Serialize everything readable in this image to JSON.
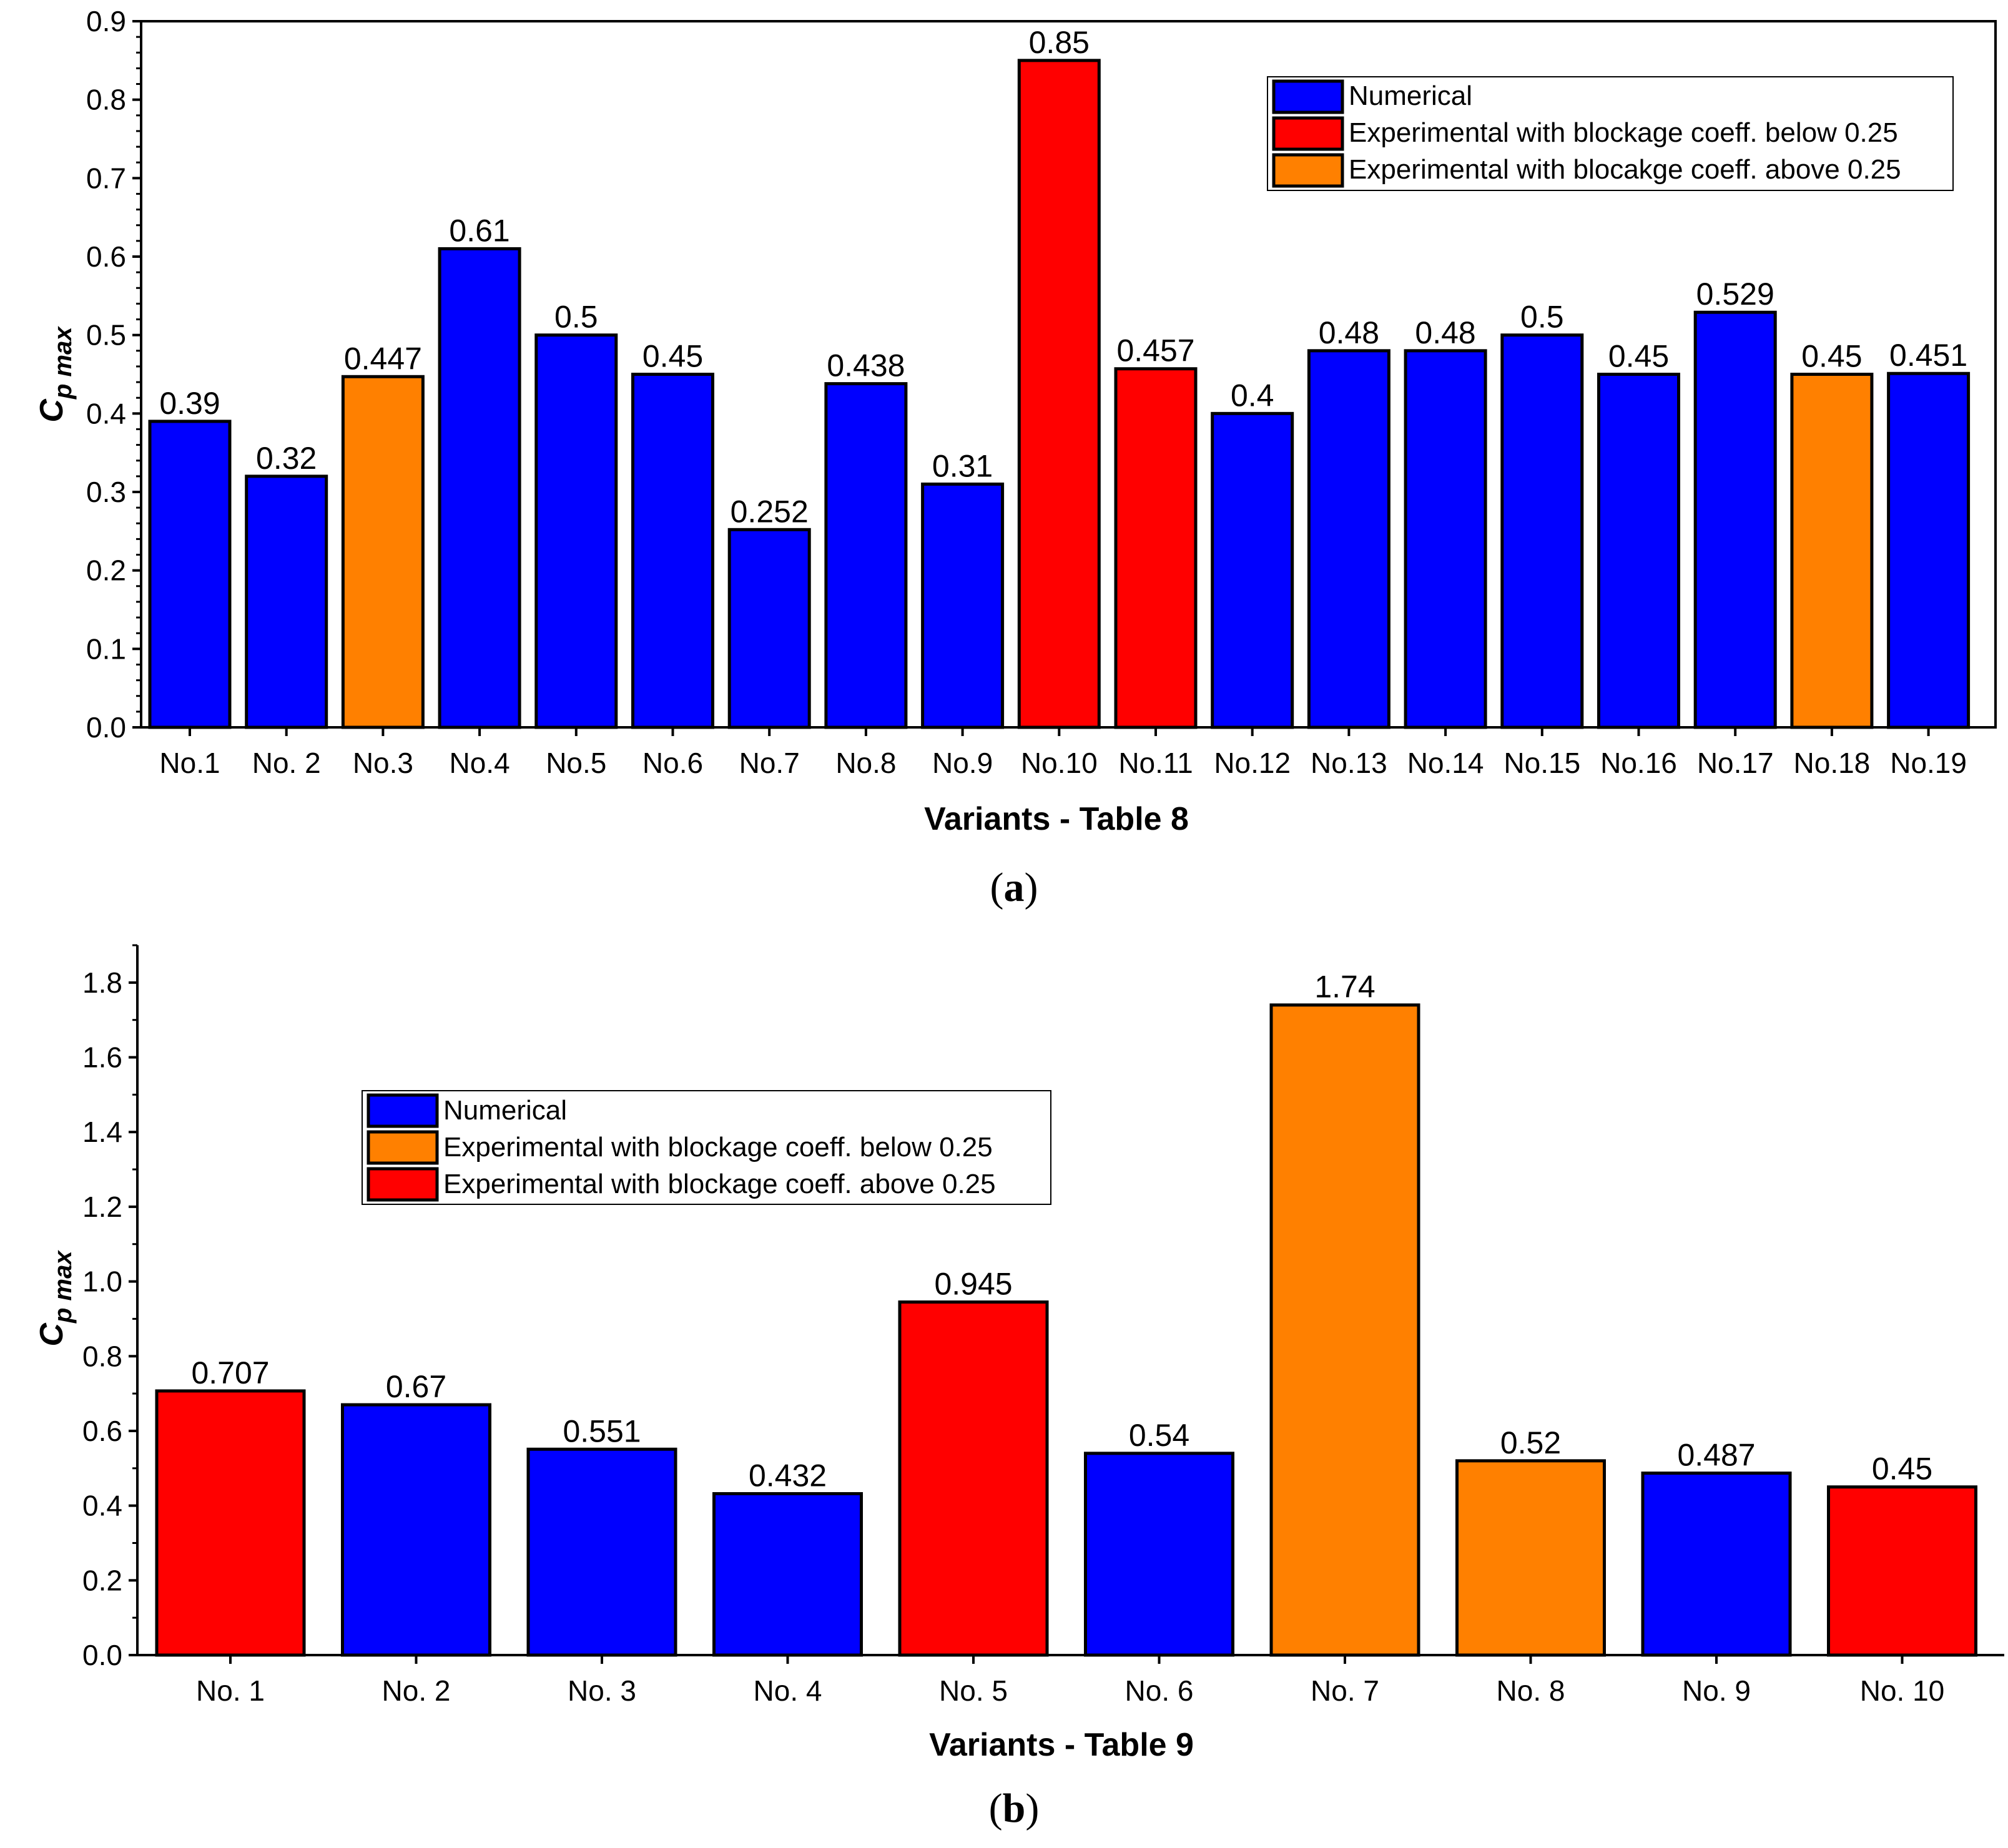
{
  "colors": {
    "numerical": "#0000ff",
    "below": "#ff0000",
    "above": "#ff8000",
    "orange": "#ff8000",
    "red": "#ff0000",
    "blue": "#0000ff"
  },
  "chart_data": [
    {
      "type": "bar",
      "panel": "a",
      "caption": "a",
      "xlabel": "Variants - Table 8",
      "ylabel_main": "C",
      "ylabel_sub": "p max",
      "ylim": [
        0,
        0.9
      ],
      "yticks": [
        "0.0",
        "0.1",
        "0.2",
        "0.3",
        "0.4",
        "0.5",
        "0.6",
        "0.7",
        "0.8",
        "0.9"
      ],
      "ytick_values": [
        0,
        0.1,
        0.2,
        0.3,
        0.4,
        0.5,
        0.6,
        0.7,
        0.8,
        0.9
      ],
      "legend_position": "top-right",
      "legend": [
        {
          "label": "Numerical",
          "color": "#0000ff"
        },
        {
          "label": "Experimental with blockage coeff. below 0.25",
          "color": "#ff0000"
        },
        {
          "label": "Experimental with blocakge coeff. above 0.25",
          "color": "#ff8000"
        }
      ],
      "categories": [
        "No.1",
        "No. 2",
        "No.3",
        "No.4",
        "No.5",
        "No.6",
        "No.7",
        "No.8",
        "No.9",
        "No.10",
        "No.11",
        "No.12",
        "No.13",
        "No.14",
        "No.15",
        "No.16",
        "No.17",
        "No.18",
        "No.19"
      ],
      "values": [
        0.39,
        0.32,
        0.447,
        0.61,
        0.5,
        0.45,
        0.252,
        0.438,
        0.31,
        0.85,
        0.457,
        0.4,
        0.48,
        0.48,
        0.5,
        0.45,
        0.529,
        0.45,
        0.451
      ],
      "value_labels": [
        "0.39",
        "0.32",
        "0.447",
        "0.61",
        "0.5",
        "0.45",
        "0.252",
        "0.438",
        "0.31",
        "0.85",
        "0.457",
        "0.4",
        "0.48",
        "0.48",
        "0.5",
        "0.45",
        "0.529",
        "0.45",
        "0.451"
      ],
      "bar_series": [
        "numerical",
        "numerical",
        "above",
        "numerical",
        "numerical",
        "numerical",
        "numerical",
        "numerical",
        "numerical",
        "below",
        "below",
        "numerical",
        "numerical",
        "numerical",
        "numerical",
        "numerical",
        "numerical",
        "above",
        "numerical"
      ]
    },
    {
      "type": "bar",
      "panel": "b",
      "caption": "b",
      "xlabel": "Variants - Table 9",
      "ylabel_main": "C",
      "ylabel_sub": "p max",
      "ylim": [
        0,
        1.9
      ],
      "yticks": [
        "0.0",
        "0.2",
        "0.4",
        "0.6",
        "0.8",
        "1.0",
        "1.2",
        "1.4",
        "1.6",
        "1.8"
      ],
      "ytick_values": [
        0,
        0.2,
        0.4,
        0.6,
        0.8,
        1.0,
        1.2,
        1.4,
        1.6,
        1.8
      ],
      "legend_position": "upper-left",
      "legend": [
        {
          "label": "Numerical",
          "color": "#0000ff"
        },
        {
          "label": "Experimental with blockage coeff. below 0.25",
          "color": "#ff8000"
        },
        {
          "label": "Experimental with blockage coeff. above 0.25",
          "color": "#ff0000"
        }
      ],
      "categories": [
        "No. 1",
        "No. 2",
        "No. 3",
        "No. 4",
        "No. 5",
        "No. 6",
        "No. 7",
        "No. 8",
        "No. 9",
        "No. 10"
      ],
      "values": [
        0.707,
        0.67,
        0.551,
        0.432,
        0.945,
        0.54,
        1.74,
        0.52,
        0.487,
        0.45
      ],
      "value_labels": [
        "0.707",
        "0.67",
        "0.551",
        "0.432",
        "0.945",
        "0.54",
        "1.74",
        "0.52",
        "0.487",
        "0.45"
      ],
      "bar_series": [
        "red",
        "blue",
        "blue",
        "blue",
        "red",
        "blue",
        "orange",
        "orange",
        "blue",
        "red"
      ]
    }
  ]
}
